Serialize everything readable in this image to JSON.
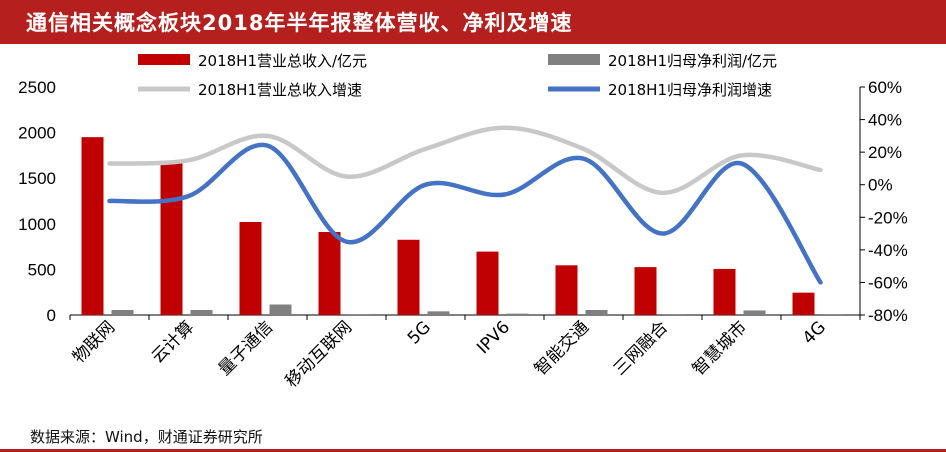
{
  "title": "通信相关概念板块2018年半年报整体营收、净利及增速",
  "source": "数据来源：Wind，财通证券研究所",
  "colors": {
    "revenue": "#c00000",
    "profit": "#808080",
    "revenue_growth": "#c8c8c8",
    "profit_growth": "#4472c4",
    "title_bar": "#b5201e"
  },
  "chart_data": {
    "type": "bar",
    "categories": [
      "物联网",
      "云计算",
      "量子通信",
      "移动互联网",
      "5G",
      "IPV6",
      "智能交通",
      "三网融合",
      "智慧城市",
      "4G"
    ],
    "y_left": {
      "ylim": [
        0,
        2500
      ],
      "ticks": [
        "0",
        "500",
        "1000",
        "1500",
        "2000",
        "2500"
      ]
    },
    "y_right": {
      "ylim": [
        -80,
        60
      ],
      "ticks": [
        "-80%",
        "-60%",
        "-40%",
        "-20%",
        "0%",
        "20%",
        "40%",
        "60%"
      ]
    },
    "series": [
      {
        "name": "2018H1营业总收入/亿元",
        "kind": "bar",
        "axis": "left",
        "values": [
          1950,
          1690,
          1020,
          910,
          825,
          695,
          545,
          525,
          505,
          245
        ]
      },
      {
        "name": "2018H1归母净利润/亿元",
        "kind": "bar",
        "axis": "left",
        "values": [
          55,
          55,
          115,
          10,
          40,
          15,
          55,
          10,
          50,
          10
        ]
      },
      {
        "name": "2018H1营业总收入增速",
        "kind": "line",
        "axis": "right",
        "values": [
          13,
          15,
          30,
          5,
          22,
          35,
          22,
          -5,
          18,
          9
        ]
      },
      {
        "name": "2018H1归母净利润增速",
        "kind": "line",
        "axis": "right",
        "values": [
          -10,
          -7,
          24,
          -35,
          0,
          -6,
          16,
          -30,
          13,
          -60
        ]
      }
    ],
    "legend_placement": "top",
    "grid": false
  }
}
